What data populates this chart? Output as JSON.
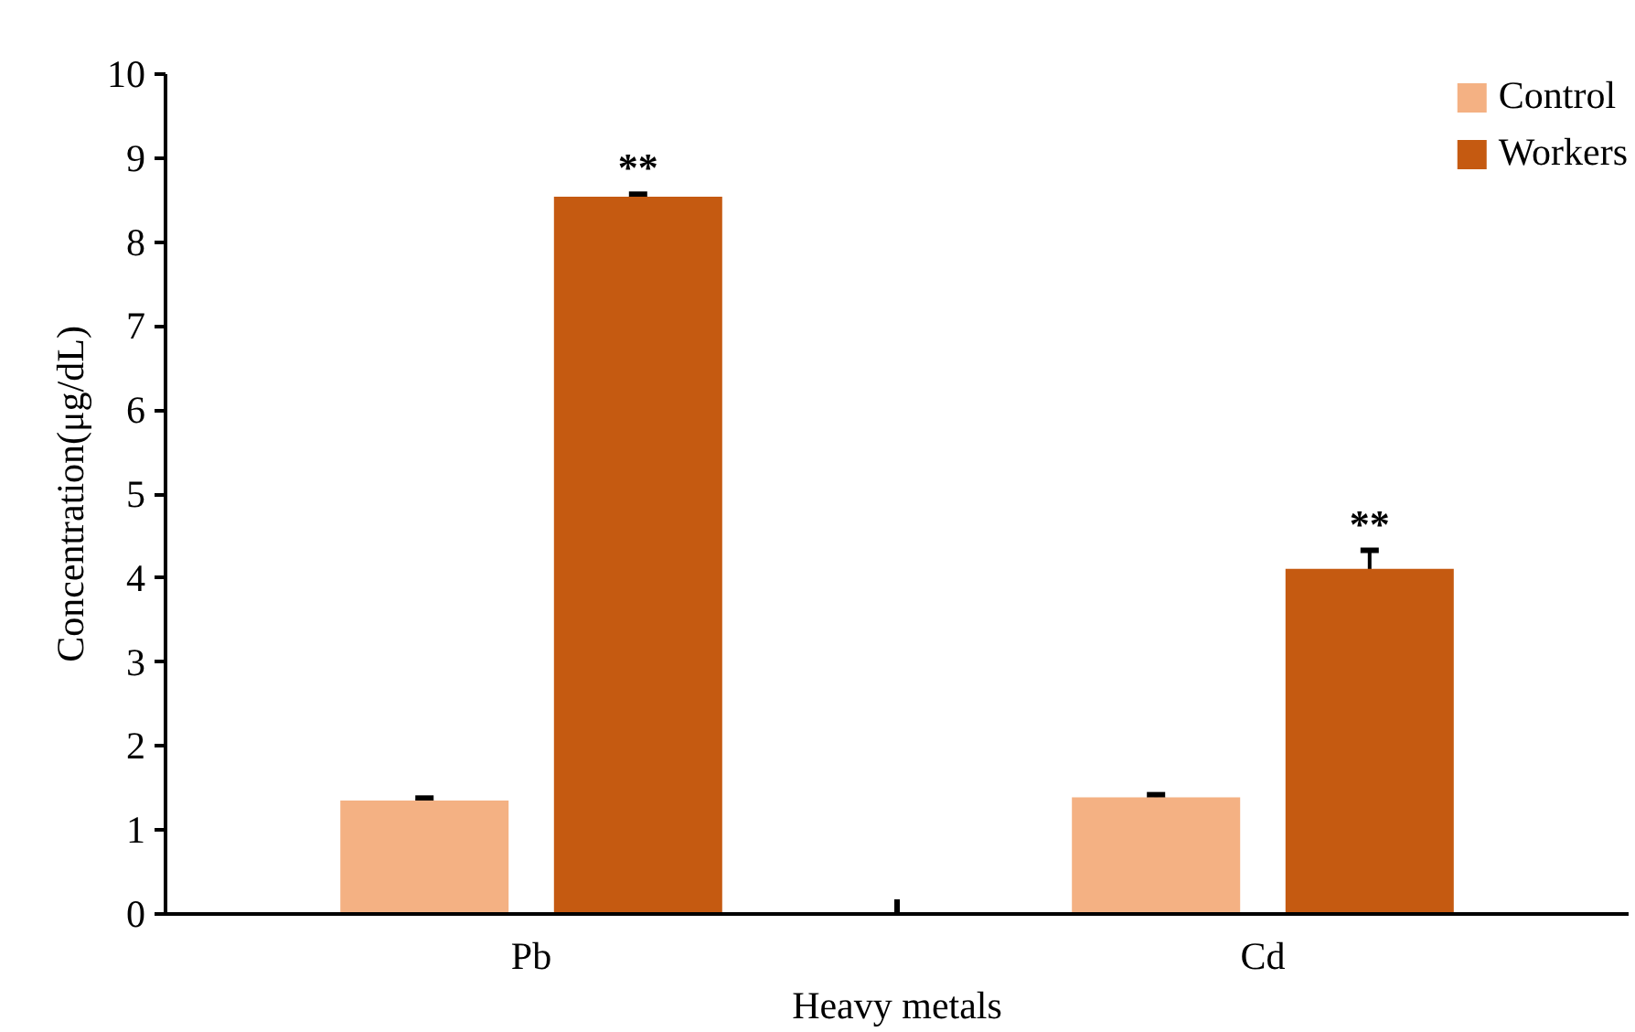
{
  "chart_data": {
    "type": "bar",
    "xlabel": "Heavy metals",
    "ylabel": "Concentration(μg/dL)",
    "categories": [
      "Pb",
      "Cd"
    ],
    "series": [
      {
        "name": "Control",
        "color": "#f4b183",
        "values": [
          1.35,
          1.39
        ],
        "errors": [
          0.03,
          0.03
        ]
      },
      {
        "name": "Workers",
        "color": "#c55a11",
        "values": [
          8.54,
          4.11
        ],
        "errors": [
          0.03,
          0.22
        ]
      }
    ],
    "ylim": [
      0,
      10
    ],
    "yticks": [
      0,
      1,
      2,
      3,
      4,
      5,
      6,
      7,
      8,
      9,
      10
    ],
    "grid": false,
    "legend": "top right",
    "annotations": [
      "**",
      "**"
    ]
  }
}
